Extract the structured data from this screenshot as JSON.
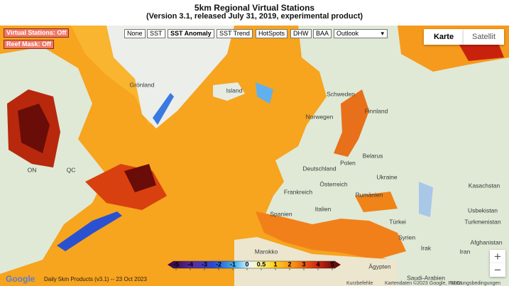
{
  "header": {
    "title": "5km Regional Virtual Stations",
    "subtitle": "(Version 3.1, released July 31, 2019, experimental product)"
  },
  "controls": {
    "virtual_stations": "Virtual Stations: Off",
    "reef_mask": "Reef Mask: Off",
    "layers": [
      "None",
      "SST",
      "SST Anomaly",
      "SST Trend",
      "HotSpots",
      "DHW",
      "BAA"
    ],
    "outlook": "Outlook",
    "map_types": [
      "Karte",
      "Satellit"
    ],
    "zoom": [
      "+",
      "−"
    ]
  },
  "legend": {
    "ticks": [
      -5,
      -4,
      -3,
      -2,
      -1,
      0,
      0.5,
      1,
      2,
      3,
      4,
      5
    ]
  },
  "map": {
    "labels": [
      "Grönland",
      "Island",
      "Schweden",
      "Finnland",
      "Norwegen",
      "Belarus",
      "Polen",
      "Deutschland",
      "Ukraine",
      "Frankreich",
      "Österreich",
      "Rumänien",
      "Kasachstan",
      "Usbekistan",
      "Spanien",
      "Italien",
      "Türkei",
      "Turkmenistan",
      "Syrien",
      "Irak",
      "Iran",
      "Afghanistan",
      "Marokko",
      "Ägypten",
      "Saudi-Arabien",
      "ON",
      "QC"
    ]
  },
  "footer": {
    "product": "Daily 5km Products (v3.1) -- 23 Oct 2023",
    "google": "Google",
    "shortcuts": "Kurzbefehle",
    "attribution": "Kartendaten ©2023 Google, INEGI",
    "terms": "Nutzungsbedingungen"
  }
}
